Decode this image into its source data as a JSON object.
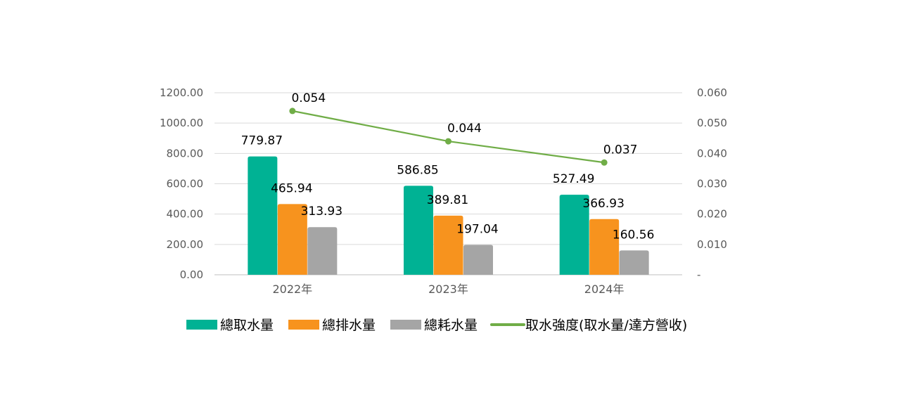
{
  "chart_data": {
    "type": "bar",
    "categories": [
      "2022年",
      "2023年",
      "2024年"
    ],
    "series": [
      {
        "name": "總取水量",
        "kind": "bar",
        "axis": "left",
        "color": "#00B294",
        "values": [
          779.87,
          586.85,
          527.49
        ],
        "labels": [
          "779.87",
          "586.85",
          "527.49"
        ]
      },
      {
        "name": "總排水量",
        "kind": "bar",
        "axis": "left",
        "color": "#F7931E",
        "values": [
          465.94,
          389.81,
          366.93
        ],
        "labels": [
          "465.94",
          "389.81",
          "366.93"
        ]
      },
      {
        "name": "總耗水量",
        "kind": "bar",
        "axis": "left",
        "color": "#A5A5A5",
        "values": [
          313.93,
          197.04,
          160.56
        ],
        "labels": [
          "313.93",
          "197.04",
          "160.56"
        ]
      },
      {
        "name": "取水強度(取水量/達方營收)",
        "kind": "line",
        "axis": "right",
        "color": "#70AD47",
        "values": [
          0.054,
          0.044,
          0.037
        ],
        "labels": [
          "0.054",
          "0.044",
          "0.037"
        ]
      }
    ],
    "y_left": {
      "min": 0,
      "max": 1200,
      "ticks": [
        "0.00",
        "200.00",
        "400.00",
        "600.00",
        "800.00",
        "1000.00",
        "1200.00"
      ]
    },
    "y_right": {
      "min": 0,
      "max": 0.06,
      "ticks": [
        "-",
        "0.010",
        "0.020",
        "0.030",
        "0.040",
        "0.050",
        "0.060"
      ]
    },
    "grid": true,
    "legend_position": "bottom"
  }
}
